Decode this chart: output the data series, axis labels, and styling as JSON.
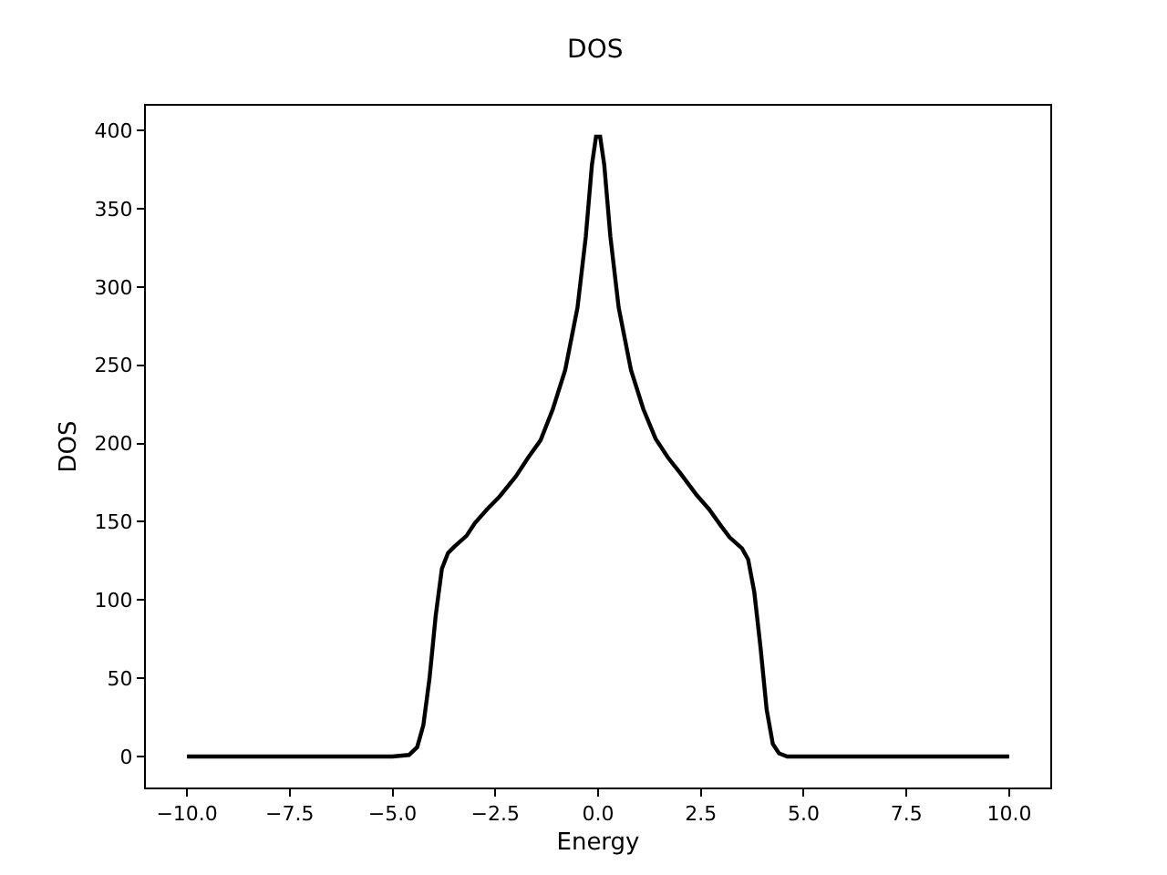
{
  "chart_data": {
    "type": "line",
    "title": "DOS",
    "xlabel": "Energy",
    "ylabel": "DOS",
    "x": [
      -10,
      -5,
      -4.6,
      -4.4,
      -4.25,
      -4.1,
      -3.95,
      -3.8,
      -3.65,
      -3.5,
      -3.2,
      -3.0,
      -2.7,
      -2.4,
      -2.0,
      -1.7,
      -1.4,
      -1.1,
      -0.8,
      -0.5,
      -0.3,
      -0.15,
      -0.05,
      0.05,
      0.15,
      0.3,
      0.5,
      0.8,
      1.1,
      1.4,
      1.7,
      2.0,
      2.4,
      2.7,
      3.0,
      3.2,
      3.5,
      3.65,
      3.8,
      3.95,
      4.1,
      4.25,
      4.4,
      4.6,
      5,
      10
    ],
    "series": [
      {
        "color": "#000000",
        "values": [
          0,
          0,
          1,
          6,
          20,
          50,
          90,
          120,
          130,
          134,
          141,
          149,
          158,
          166,
          179,
          191,
          202,
          222,
          247,
          287,
          332,
          378,
          396,
          396,
          378,
          332,
          287,
          247,
          222,
          203,
          191,
          181,
          167,
          158,
          147,
          140,
          133,
          126,
          105,
          70,
          30,
          8,
          2,
          0,
          0,
          0
        ]
      }
    ],
    "xlim": [
      -11,
      11
    ],
    "ylim": [
      -19.8,
      415.8
    ],
    "xticks": [
      {
        "value": -10,
        "label": "−10.0"
      },
      {
        "value": -7.5,
        "label": "−7.5"
      },
      {
        "value": -5,
        "label": "−5.0"
      },
      {
        "value": -2.5,
        "label": "−2.5"
      },
      {
        "value": 0,
        "label": "0.0"
      },
      {
        "value": 2.5,
        "label": "2.5"
      },
      {
        "value": 5,
        "label": "5.0"
      },
      {
        "value": 7.5,
        "label": "7.5"
      },
      {
        "value": 10,
        "label": "10.0"
      }
    ],
    "yticks": [
      0,
      50,
      100,
      150,
      200,
      250,
      300,
      350,
      400
    ],
    "legend": false,
    "marker": "none",
    "line_style": "solid"
  }
}
